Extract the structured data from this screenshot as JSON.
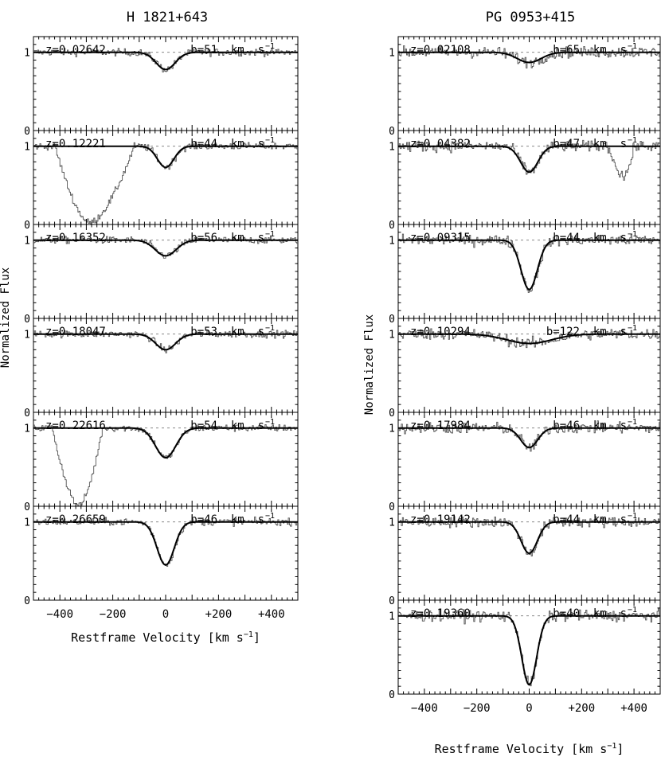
{
  "chart_data": [
    {
      "type": "line",
      "title": "H  1821+643",
      "xlabel": "Restframe Velocity [km s",
      "xlabel_sup": "−1",
      "xlabel_end": "]",
      "ylabel": "Normalized Flux",
      "xlim": [
        -500,
        500
      ],
      "ylim": [
        0,
        1.2
      ],
      "x_ticks": [
        -400,
        -200,
        0,
        200,
        400
      ],
      "x_tick_labels": [
        "−400",
        "−200",
        "0",
        "+200",
        "+400"
      ],
      "y_ticks": [
        0,
        1
      ],
      "y_tick_labels": [
        "0",
        "1"
      ],
      "panels": [
        {
          "z_label": "z=0.02642",
          "b_label": "b=51  km  s",
          "b": 51,
          "depth": 0.22,
          "extra_absorption": []
        },
        {
          "z_label": "z=0.12221",
          "b_label": "b=44  km  s",
          "b": 44,
          "depth": 0.27,
          "extra_absorption": [
            {
              "from": -420,
              "to": -120,
              "center": -290,
              "min_flux": 0.02
            }
          ]
        },
        {
          "z_label": "z=0.16352",
          "b_label": "b=56  km  s",
          "b": 56,
          "depth": 0.2,
          "extra_absorption": []
        },
        {
          "z_label": "z=0.18047",
          "b_label": "b=53  km  s",
          "b": 53,
          "depth": 0.2,
          "extra_absorption": []
        },
        {
          "z_label": "z=0.22616",
          "b_label": "b=54  km  s",
          "b": 54,
          "depth": 0.38,
          "extra_absorption": [
            {
              "from": -430,
              "to": -240,
              "center": -330,
              "min_flux": 0.0
            }
          ]
        },
        {
          "z_label": "z=0.26659",
          "b_label": "b=46  km  s",
          "b": 46,
          "depth": 0.55,
          "extra_absorption": []
        }
      ]
    },
    {
      "type": "line",
      "title": "PG  0953+415",
      "xlabel": "Restframe Velocity [km s",
      "xlabel_sup": "−1",
      "xlabel_end": "]",
      "ylabel": "Normalized Flux",
      "xlim": [
        -500,
        500
      ],
      "ylim": [
        0,
        1.2
      ],
      "x_ticks": [
        -400,
        -200,
        0,
        200,
        400
      ],
      "x_tick_labels": [
        "−400",
        "−200",
        "0",
        "+200",
        "+400"
      ],
      "y_ticks": [
        0,
        1
      ],
      "y_tick_labels": [
        "0",
        "1"
      ],
      "panels": [
        {
          "z_label": "z=0.02108",
          "b_label": "b=65  km  s",
          "b": 65,
          "depth": 0.13,
          "extra_absorption": []
        },
        {
          "z_label": "z=0.04382",
          "b_label": "b=47  km  s",
          "b": 47,
          "depth": 0.33,
          "extra_absorption": [
            {
              "from": 300,
              "to": 400,
              "center": 360,
              "min_flux": 0.62
            }
          ]
        },
        {
          "z_label": "z=0.09315",
          "b_label": "b=44  km  s",
          "b": 44,
          "depth": 0.63,
          "extra_absorption": []
        },
        {
          "z_label": "z=0.10294",
          "b_label": "b=122  km  s",
          "b": 122,
          "depth": 0.12,
          "extra_absorption": []
        },
        {
          "z_label": "z=0.17984",
          "b_label": "b=46  km  s",
          "b": 46,
          "depth": 0.25,
          "extra_absorption": []
        },
        {
          "z_label": "z=0.19142",
          "b_label": "b=44  km  s",
          "b": 44,
          "depth": 0.4,
          "extra_absorption": []
        },
        {
          "z_label": "z=0.19360",
          "b_label": "b=40  km  s",
          "b": 40,
          "depth": 0.88,
          "extra_absorption": []
        }
      ]
    }
  ]
}
